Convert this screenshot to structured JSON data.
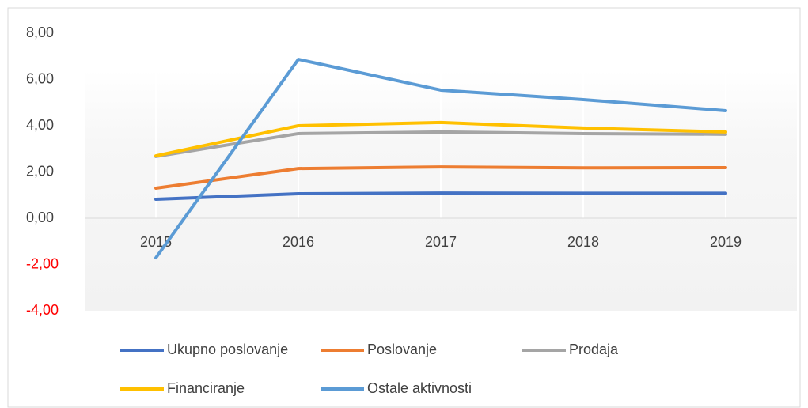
{
  "chart_data": {
    "type": "line",
    "categories": [
      "2015",
      "2016",
      "2017",
      "2018",
      "2019"
    ],
    "series": [
      {
        "name": "Ukupno poslovanje",
        "color": "#4472c4",
        "values": [
          0.82,
          1.06,
          1.09,
          1.08,
          1.08
        ]
      },
      {
        "name": "Poslovanje",
        "color": "#ed7d31",
        "values": [
          1.3,
          2.15,
          2.22,
          2.18,
          2.19
        ]
      },
      {
        "name": "Prodaja",
        "color": "#a5a5a5",
        "values": [
          2.67,
          3.66,
          3.73,
          3.66,
          3.63
        ]
      },
      {
        "name": "Financiranje",
        "color": "#ffc000",
        "values": [
          2.7,
          4.0,
          4.14,
          3.9,
          3.73
        ]
      },
      {
        "name": "Ostale aktivnosti",
        "color": "#5b9bd5",
        "values": [
          -1.71,
          6.87,
          5.54,
          5.13,
          4.65
        ]
      }
    ],
    "ylim": [
      -4,
      8
    ],
    "yticks": [
      {
        "value": 8,
        "label": "8,00"
      },
      {
        "value": 6,
        "label": "6,00"
      },
      {
        "value": 4,
        "label": "4,00"
      },
      {
        "value": 2,
        "label": "2,00"
      },
      {
        "value": 0,
        "label": "0,00"
      },
      {
        "value": -2,
        "label": "-2,00"
      },
      {
        "value": -4,
        "label": "-4,00"
      }
    ],
    "negative_tick_label_color": "#ff0000",
    "grid": "x",
    "legend": "bottom"
  }
}
